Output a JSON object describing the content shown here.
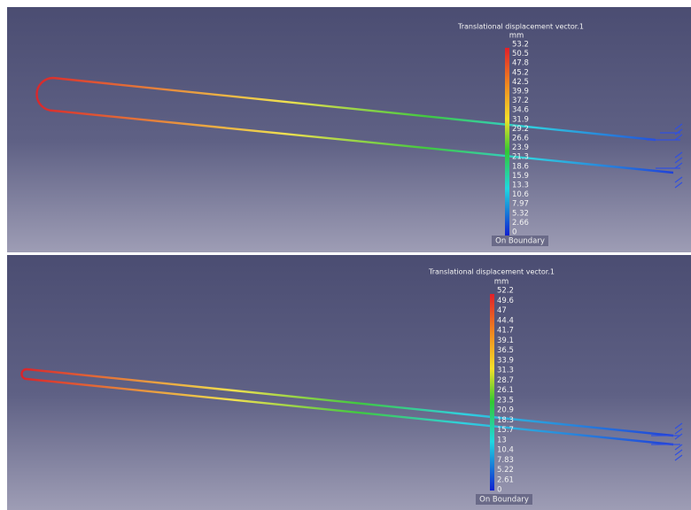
{
  "panels": [
    {
      "legend": {
        "title": "Translational displacement vector.1",
        "unit": "mm",
        "labels": [
          "53.2",
          "50.5",
          "47.8",
          "45.2",
          "42.5",
          "39.9",
          "37.2",
          "34.6",
          "31.9",
          "29.2",
          "26.6",
          "23.9",
          "21.3",
          "18.6",
          "15.9",
          "13.3",
          "10.6",
          "7.97",
          "5.32",
          "2.66",
          "0"
        ],
        "footer": "On Boundary"
      }
    },
    {
      "legend": {
        "title": "Translational displacement vector.1",
        "unit": "mm",
        "labels": [
          "52.2",
          "49.6",
          "47",
          "44.4",
          "41.7",
          "39.1",
          "36.5",
          "33.9",
          "31.3",
          "28.7",
          "26.1",
          "23.5",
          "20.9",
          "18.3",
          "15.7",
          "13",
          "10.4",
          "7.83",
          "5.22",
          "2.61",
          "0"
        ],
        "footer": "On Boundary"
      }
    }
  ]
}
